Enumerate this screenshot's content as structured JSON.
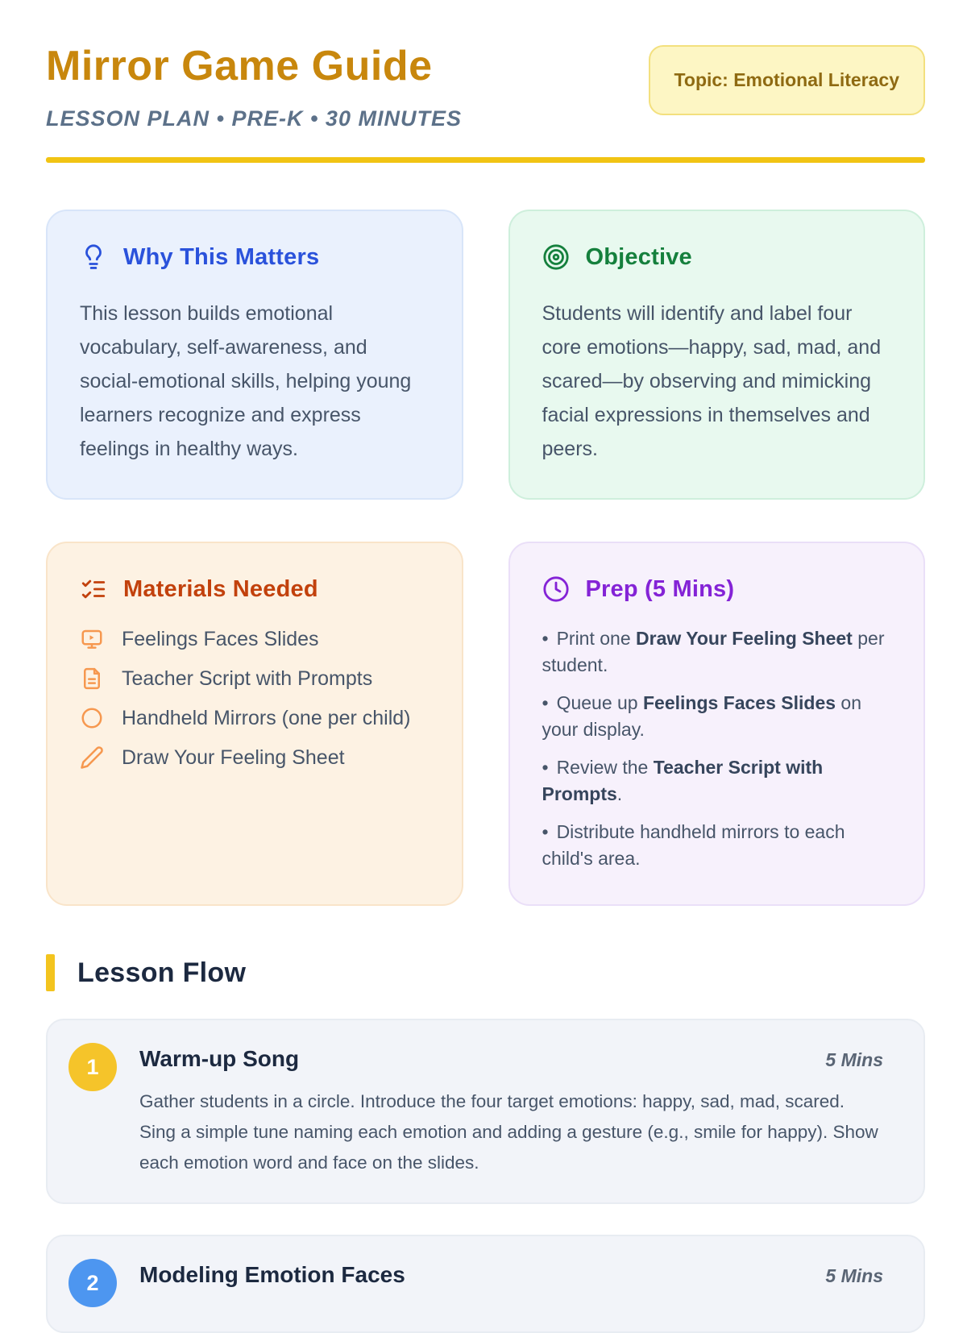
{
  "page": {
    "title": "Mirror Game Guide",
    "subtitle": "LESSON PLAN • PRE-K • 30 MINUTES",
    "topic_badge": "Topic: Emotional Literacy"
  },
  "colors": {
    "title_gold": "#C8870D",
    "divider_yellow": "#F1C413",
    "badge_bg": "#FDF6C4",
    "badge_border": "#F3E07E",
    "badge_text": "#8F6A12",
    "body_text": "#475569",
    "heading_navy": "#1C2940"
  },
  "cards": {
    "why": {
      "icon": "lightbulb-icon",
      "accent": "#2A52DB",
      "title": "Why This Matters",
      "body": "This lesson builds emotional vocabulary, self-awareness, and social-emotional skills, helping young learners recognize and express feelings in healthy ways."
    },
    "objective": {
      "icon": "target-icon",
      "accent": "#15803D",
      "title": "Objective",
      "body": "Students will identify and label four core emotions—happy, sad, mad, and scared—by observing and mimicking facial expressions in themselves and peers."
    },
    "materials": {
      "icon": "checklist-icon",
      "accent": "#C2410C",
      "item_icon_color": "#F6984F",
      "title": "Materials Needed",
      "items": [
        {
          "icon": "slides-icon",
          "label": "Feelings Faces Slides"
        },
        {
          "icon": "document-icon",
          "label": "Teacher Script with Prompts"
        },
        {
          "icon": "circle-icon",
          "label": "Handheld Mirrors (one per child)"
        },
        {
          "icon": "pencil-icon",
          "label": "Draw Your Feeling Sheet"
        }
      ]
    },
    "prep": {
      "icon": "clock-icon",
      "accent": "#8423D6",
      "title": "Prep (5 Mins)",
      "items": [
        [
          {
            "t": "Print one ",
            "b": false
          },
          {
            "t": "Draw Your Feeling Sheet",
            "b": true
          },
          {
            "t": " per student.",
            "b": false
          }
        ],
        [
          {
            "t": "Queue up ",
            "b": false
          },
          {
            "t": "Feelings Faces Slides",
            "b": true
          },
          {
            "t": " on your display.",
            "b": false
          }
        ],
        [
          {
            "t": "Review the ",
            "b": false
          },
          {
            "t": "Teacher Script with Prompts",
            "b": true
          },
          {
            "t": ".",
            "b": false
          }
        ],
        [
          {
            "t": "Distribute handheld mirrors to each child's area.",
            "b": false
          }
        ]
      ]
    }
  },
  "lesson_flow": {
    "heading": "Lesson Flow",
    "steps": [
      {
        "number": "1",
        "title": "Warm-up Song",
        "duration": "5 Mins",
        "badge_color": "#F5C42A",
        "description": "Gather students in a circle. Introduce the four target emotions: happy, sad, mad, scared. Sing a simple tune naming each emotion and adding a gesture (e.g., smile for happy). Show each emotion word and face on the slides."
      },
      {
        "number": "2",
        "title": "Modeling Emotion Faces",
        "duration": "5 Mins",
        "badge_color": "#4D96F0",
        "description": ""
      }
    ]
  }
}
